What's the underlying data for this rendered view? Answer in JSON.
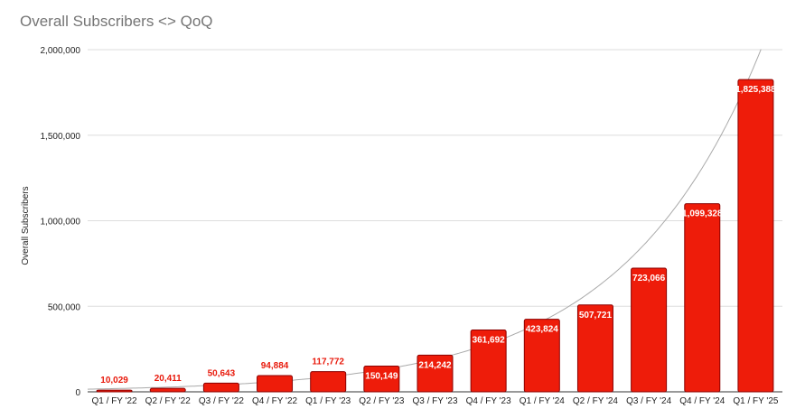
{
  "chart_data": {
    "type": "bar",
    "title": "Overall Subscribers <> QoQ",
    "xlabel": "",
    "ylabel": "Overall Subscribers",
    "ylim": [
      0,
      2000000
    ],
    "yticks": [
      "0",
      "500,000",
      "1,000,000",
      "1,500,000",
      "2,000,000"
    ],
    "ytick_values": [
      0,
      500000,
      1000000,
      1500000,
      2000000
    ],
    "grid": true,
    "trendline": "exponential",
    "categories": [
      "Q1 / FY '22",
      "Q2 / FY '22",
      "Q3 / FY '22",
      "Q4 / FY '22",
      "Q1 / FY '23",
      "Q2 / FY '23",
      "Q3 / FY '23",
      "Q4 / FY '23",
      "Q1 / FY '24",
      "Q2 / FY '24",
      "Q3 / FY '24",
      "Q4 / FY '24",
      "Q1 / FY '25"
    ],
    "values": [
      10029,
      20411,
      50643,
      94884,
      117772,
      150149,
      214242,
      361692,
      423824,
      507721,
      723066,
      1099328,
      1825388
    ],
    "value_labels": [
      "10,029",
      "20,411",
      "50,643",
      "94,884",
      "117,772",
      "150,149",
      "214,242",
      "361,692",
      "423,824",
      "507,721",
      "723,066",
      "1,099,328",
      "1,825,388"
    ],
    "colors": {
      "bar": "#ee1c0a",
      "bar_border": "#8b0000",
      "label_outside": "#e8190b",
      "label_inside": "#ffffff",
      "grid": "#dddddd",
      "trend": "#aaaaaa"
    }
  }
}
